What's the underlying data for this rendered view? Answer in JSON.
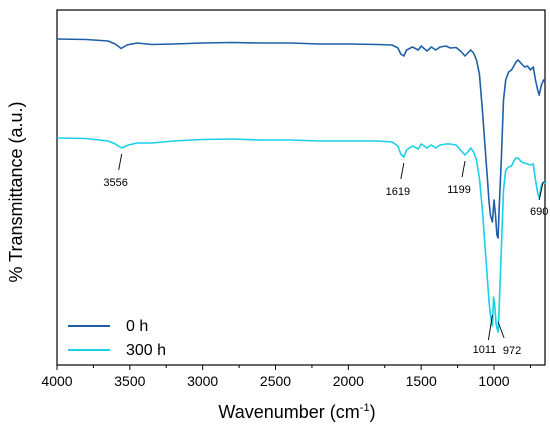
{
  "chart_data": {
    "type": "line",
    "xlabel": "Wavenumber (cm",
    "xlabel_sup": "-1",
    "xlabel_suffix": ")",
    "ylabel": "% Transmittance (a.u.)",
    "xlim": [
      4000,
      650
    ],
    "x_reversed": true,
    "x_ticks": [
      "4000",
      "3500",
      "3000",
      "2500",
      "2000",
      "1500",
      "1000"
    ],
    "y_ticks_labeled": false,
    "grid": false,
    "legend_position": "bottom-left",
    "series": [
      {
        "name": "0 h",
        "color": "#1f5fa6",
        "points": [
          [
            4000,
            29
          ],
          [
            3800,
            29.5
          ],
          [
            3650,
            31
          ],
          [
            3600,
            34
          ],
          [
            3560,
            38.5
          ],
          [
            3520,
            35
          ],
          [
            3450,
            33
          ],
          [
            3350,
            34.5
          ],
          [
            3200,
            34
          ],
          [
            3000,
            33
          ],
          [
            2800,
            32.5
          ],
          [
            2600,
            33
          ],
          [
            2400,
            33
          ],
          [
            2200,
            34
          ],
          [
            2000,
            34
          ],
          [
            1800,
            34.5
          ],
          [
            1700,
            35
          ],
          [
            1660,
            38
          ],
          [
            1640,
            44
          ],
          [
            1619,
            46
          ],
          [
            1600,
            40
          ],
          [
            1560,
            37
          ],
          [
            1520,
            40
          ],
          [
            1500,
            36
          ],
          [
            1460,
            41
          ],
          [
            1430,
            37
          ],
          [
            1400,
            40
          ],
          [
            1370,
            37
          ],
          [
            1330,
            36
          ],
          [
            1300,
            38
          ],
          [
            1260,
            37.5
          ],
          [
            1230,
            41
          ],
          [
            1199,
            46
          ],
          [
            1180,
            43
          ],
          [
            1160,
            40
          ],
          [
            1140,
            43
          ],
          [
            1120,
            50
          ],
          [
            1100,
            64
          ],
          [
            1080,
            100
          ],
          [
            1060,
            140
          ],
          [
            1045,
            170
          ],
          [
            1035,
            190
          ],
          [
            1025,
            205
          ],
          [
            1011,
            212
          ],
          [
            1000,
            190
          ],
          [
            990,
            205
          ],
          [
            980,
            225
          ],
          [
            972,
            228
          ],
          [
            965,
            200
          ],
          [
            950,
            150
          ],
          [
            935,
            90
          ],
          [
            920,
            70
          ],
          [
            900,
            62
          ],
          [
            880,
            60
          ],
          [
            860,
            55
          ],
          [
            850,
            52
          ],
          [
            835,
            50
          ],
          [
            810,
            54
          ],
          [
            790,
            57
          ],
          [
            770,
            56
          ],
          [
            750,
            60
          ],
          [
            730,
            57
          ],
          [
            715,
            70
          ],
          [
            700,
            80
          ],
          [
            690,
            85
          ],
          [
            675,
            75
          ],
          [
            660,
            70
          ],
          [
            650,
            72
          ]
        ]
      },
      {
        "name": "300 h",
        "color": "#19d0e8",
        "points": [
          [
            4000,
            128
          ],
          [
            3800,
            128.5
          ],
          [
            3650,
            131
          ],
          [
            3600,
            134
          ],
          [
            3556,
            138
          ],
          [
            3510,
            135
          ],
          [
            3450,
            133
          ],
          [
            3350,
            133
          ],
          [
            3200,
            131
          ],
          [
            3000,
            129.5
          ],
          [
            2800,
            129
          ],
          [
            2600,
            130
          ],
          [
            2400,
            130
          ],
          [
            2200,
            131
          ],
          [
            2000,
            131
          ],
          [
            1800,
            131
          ],
          [
            1700,
            132
          ],
          [
            1660,
            136
          ],
          [
            1640,
            144
          ],
          [
            1619,
            147
          ],
          [
            1600,
            140
          ],
          [
            1560,
            136
          ],
          [
            1520,
            139
          ],
          [
            1500,
            134
          ],
          [
            1460,
            138
          ],
          [
            1430,
            135
          ],
          [
            1400,
            138
          ],
          [
            1370,
            135
          ],
          [
            1330,
            134
          ],
          [
            1300,
            134
          ],
          [
            1260,
            135
          ],
          [
            1230,
            140
          ],
          [
            1199,
            145
          ],
          [
            1180,
            142
          ],
          [
            1160,
            138
          ],
          [
            1140,
            142
          ],
          [
            1120,
            150
          ],
          [
            1100,
            168
          ],
          [
            1080,
            200
          ],
          [
            1060,
            240
          ],
          [
            1045,
            270
          ],
          [
            1035,
            290
          ],
          [
            1025,
            305
          ],
          [
            1011,
            316
          ],
          [
            1003,
            287
          ],
          [
            995,
            295
          ],
          [
            985,
            315
          ],
          [
            972,
            322
          ],
          [
            965,
            300
          ],
          [
            950,
            240
          ],
          [
            935,
            180
          ],
          [
            920,
            160
          ],
          [
            900,
            157
          ],
          [
            880,
            156
          ],
          [
            860,
            150
          ],
          [
            850,
            148
          ],
          [
            835,
            148
          ],
          [
            810,
            152
          ],
          [
            790,
            153
          ],
          [
            770,
            154
          ],
          [
            750,
            155
          ],
          [
            730,
            154
          ],
          [
            715,
            170
          ],
          [
            700,
            183
          ],
          [
            690,
            188
          ],
          [
            675,
            175
          ],
          [
            660,
            172
          ],
          [
            650,
            174
          ]
        ]
      }
    ],
    "annotations": [
      {
        "label": "3556",
        "x": 3556,
        "series": 1
      },
      {
        "label": "1619",
        "x": 1619,
        "series": 1
      },
      {
        "label": "1199",
        "x": 1199,
        "series": 1
      },
      {
        "label": "690",
        "x": 690,
        "series": 1
      },
      {
        "label": "1011",
        "x": 1011,
        "series": 1
      },
      {
        "label": "972",
        "x": 972,
        "series": 1
      }
    ]
  }
}
